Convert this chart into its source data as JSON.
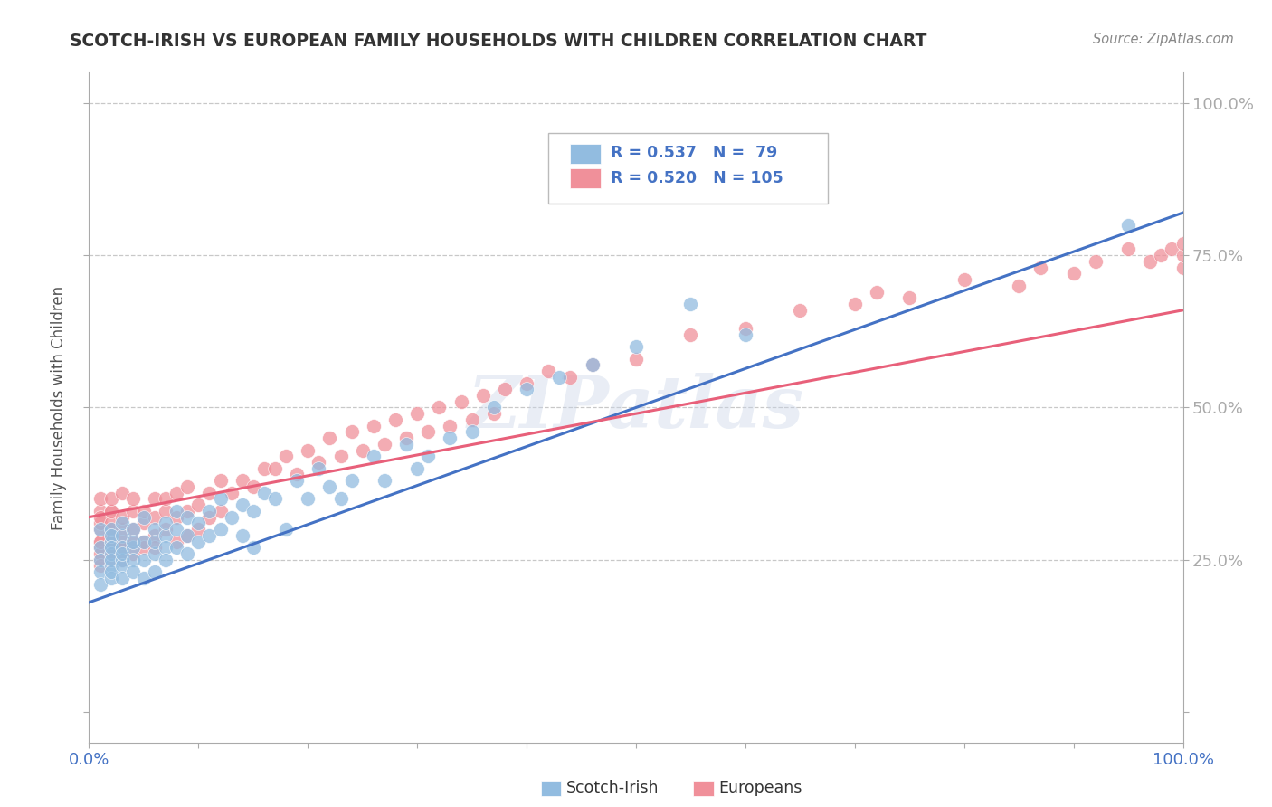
{
  "title": "SCOTCH-IRISH VS EUROPEAN FAMILY HOUSEHOLDS WITH CHILDREN CORRELATION CHART",
  "source": "Source: ZipAtlas.com",
  "ylabel": "Family Households with Children",
  "watermark": "ZIPatlas",
  "scotch_irish_color": "#92bce0",
  "europeans_color": "#f0909a",
  "scotch_irish_line_color": "#4472c4",
  "europeans_line_color": "#e8607a",
  "background_color": "#ffffff",
  "plot_bg_color": "#ffffff",
  "grid_color": "#c8c8c8",
  "tick_label_color": "#4472c4",
  "R_scotch": 0.537,
  "N_scotch": 79,
  "R_european": 0.52,
  "N_european": 105,
  "xlim": [
    0.0,
    1.0
  ],
  "ylim": [
    -0.05,
    1.05
  ],
  "si_line_x0": 0.0,
  "si_line_y0": 0.18,
  "si_line_x1": 1.0,
  "si_line_y1": 0.82,
  "eu_line_x0": 0.0,
  "eu_line_y0": 0.32,
  "eu_line_x1": 1.0,
  "eu_line_y1": 0.66,
  "scotch_irish_x": [
    0.01,
    0.01,
    0.01,
    0.01,
    0.01,
    0.02,
    0.02,
    0.02,
    0.02,
    0.02,
    0.02,
    0.02,
    0.02,
    0.02,
    0.03,
    0.03,
    0.03,
    0.03,
    0.03,
    0.03,
    0.03,
    0.04,
    0.04,
    0.04,
    0.04,
    0.04,
    0.05,
    0.05,
    0.05,
    0.05,
    0.06,
    0.06,
    0.06,
    0.06,
    0.07,
    0.07,
    0.07,
    0.07,
    0.08,
    0.08,
    0.08,
    0.09,
    0.09,
    0.09,
    0.1,
    0.1,
    0.11,
    0.11,
    0.12,
    0.12,
    0.13,
    0.14,
    0.14,
    0.15,
    0.15,
    0.16,
    0.17,
    0.18,
    0.19,
    0.2,
    0.21,
    0.22,
    0.23,
    0.24,
    0.26,
    0.27,
    0.29,
    0.3,
    0.31,
    0.33,
    0.35,
    0.37,
    0.4,
    0.43,
    0.46,
    0.5,
    0.55,
    0.6,
    0.95
  ],
  "scotch_irish_y": [
    0.27,
    0.25,
    0.23,
    0.21,
    0.3,
    0.28,
    0.24,
    0.26,
    0.22,
    0.3,
    0.25,
    0.29,
    0.23,
    0.27,
    0.25,
    0.29,
    0.24,
    0.27,
    0.22,
    0.31,
    0.26,
    0.27,
    0.25,
    0.3,
    0.23,
    0.28,
    0.28,
    0.25,
    0.32,
    0.22,
    0.3,
    0.26,
    0.28,
    0.23,
    0.29,
    0.27,
    0.31,
    0.25,
    0.3,
    0.27,
    0.33,
    0.29,
    0.26,
    0.32,
    0.31,
    0.28,
    0.33,
    0.29,
    0.35,
    0.3,
    0.32,
    0.34,
    0.29,
    0.33,
    0.27,
    0.36,
    0.35,
    0.3,
    0.38,
    0.35,
    0.4,
    0.37,
    0.35,
    0.38,
    0.42,
    0.38,
    0.44,
    0.4,
    0.42,
    0.45,
    0.46,
    0.5,
    0.53,
    0.55,
    0.57,
    0.6,
    0.67,
    0.62,
    0.8
  ],
  "europeans_x": [
    0.01,
    0.01,
    0.01,
    0.01,
    0.01,
    0.01,
    0.01,
    0.01,
    0.01,
    0.01,
    0.01,
    0.02,
    0.02,
    0.02,
    0.02,
    0.02,
    0.02,
    0.02,
    0.02,
    0.02,
    0.02,
    0.02,
    0.03,
    0.03,
    0.03,
    0.03,
    0.03,
    0.03,
    0.04,
    0.04,
    0.04,
    0.04,
    0.04,
    0.05,
    0.05,
    0.05,
    0.05,
    0.06,
    0.06,
    0.06,
    0.06,
    0.07,
    0.07,
    0.07,
    0.08,
    0.08,
    0.08,
    0.09,
    0.09,
    0.09,
    0.1,
    0.1,
    0.11,
    0.11,
    0.12,
    0.12,
    0.13,
    0.14,
    0.15,
    0.16,
    0.17,
    0.18,
    0.19,
    0.2,
    0.21,
    0.22,
    0.23,
    0.24,
    0.25,
    0.26,
    0.27,
    0.28,
    0.29,
    0.3,
    0.31,
    0.32,
    0.33,
    0.34,
    0.35,
    0.36,
    0.37,
    0.38,
    0.4,
    0.42,
    0.44,
    0.46,
    0.5,
    0.55,
    0.6,
    0.65,
    0.7,
    0.72,
    0.75,
    0.8,
    0.85,
    0.87,
    0.9,
    0.92,
    0.95,
    0.97,
    0.98,
    0.99,
    1.0,
    1.0,
    1.0
  ],
  "europeans_y": [
    0.3,
    0.28,
    0.25,
    0.33,
    0.27,
    0.31,
    0.26,
    0.32,
    0.28,
    0.24,
    0.35,
    0.3,
    0.27,
    0.33,
    0.28,
    0.25,
    0.31,
    0.29,
    0.27,
    0.33,
    0.26,
    0.35,
    0.3,
    0.27,
    0.32,
    0.28,
    0.25,
    0.36,
    0.3,
    0.28,
    0.33,
    0.26,
    0.35,
    0.31,
    0.28,
    0.33,
    0.27,
    0.32,
    0.29,
    0.35,
    0.27,
    0.33,
    0.3,
    0.35,
    0.32,
    0.28,
    0.36,
    0.33,
    0.29,
    0.37,
    0.34,
    0.3,
    0.36,
    0.32,
    0.38,
    0.33,
    0.36,
    0.38,
    0.37,
    0.4,
    0.4,
    0.42,
    0.39,
    0.43,
    0.41,
    0.45,
    0.42,
    0.46,
    0.43,
    0.47,
    0.44,
    0.48,
    0.45,
    0.49,
    0.46,
    0.5,
    0.47,
    0.51,
    0.48,
    0.52,
    0.49,
    0.53,
    0.54,
    0.56,
    0.55,
    0.57,
    0.58,
    0.62,
    0.63,
    0.66,
    0.67,
    0.69,
    0.68,
    0.71,
    0.7,
    0.73,
    0.72,
    0.74,
    0.76,
    0.74,
    0.75,
    0.76,
    0.73,
    0.75,
    0.77
  ]
}
